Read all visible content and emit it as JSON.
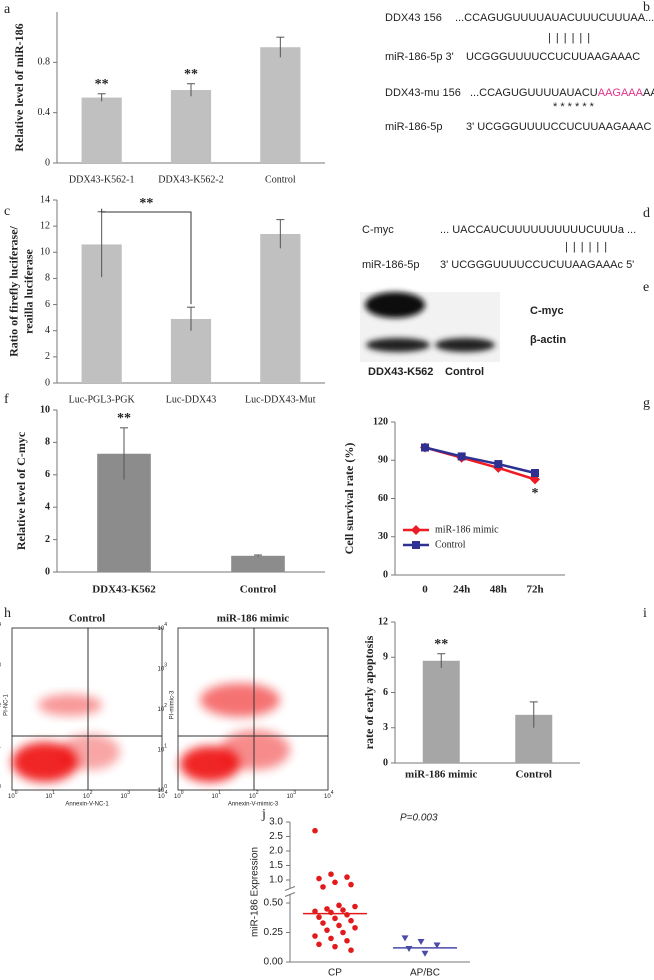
{
  "panel_labels": [
    "a",
    "b",
    "c",
    "d",
    "e",
    "f",
    "g",
    "h",
    "i",
    "j"
  ],
  "chart_data": [
    {
      "type": "bar",
      "ylabel": [
        "Relative level of miR-186"
      ],
      "categories": [
        "DDX43-K562-1",
        "DDX43-K562-2",
        "Control"
      ],
      "values": [
        0.52,
        0.58,
        0.92
      ],
      "errors": [
        0.03,
        0.05,
        0.08
      ],
      "significance": [
        "**",
        "**",
        null
      ],
      "color": "#c0c0c0",
      "ylim": [
        0,
        1.2
      ],
      "yticks": [
        0,
        0.4,
        0.8
      ]
    },
    {
      "type": "bar",
      "ylabel": [
        "Ratio of firefly luciferase/",
        "reailla luciferase"
      ],
      "categories": [
        "Luc-PGL3-PGK",
        "Luc-DDX43",
        "Luc-DDX43-Mut"
      ],
      "values": [
        10.6,
        4.9,
        11.4
      ],
      "errors": [
        2.5,
        0.9,
        1.1
      ],
      "comparison": {
        "label": "**",
        "categories": [
          "Luc-PGL3-PGK",
          "Luc-DDX43"
        ]
      },
      "color": "#c0c0c0",
      "ylim": [
        0,
        14
      ],
      "yticks": [
        0,
        2,
        4,
        6,
        8,
        10,
        12,
        14
      ]
    },
    {
      "type": "bar",
      "ylabel": [
        "Relative level of C-myc"
      ],
      "categories": [
        "DDX43-K562",
        "Control"
      ],
      "values": [
        7.3,
        1.0
      ],
      "errors": [
        1.6,
        0.05
      ],
      "significance": [
        "**",
        null
      ],
      "color": "#8c8c8c",
      "ylim": [
        0,
        10
      ],
      "yticks": [
        0,
        2,
        4,
        6,
        8,
        10
      ]
    },
    {
      "type": "line",
      "ylabel": [
        "Cell survival rate (%)"
      ],
      "categories": [
        "0",
        "24h",
        "48h",
        "72h"
      ],
      "legend": "lower left",
      "series": [
        {
          "name": "miR-186 mimic",
          "color": "#ed1c24",
          "marker": "diamond",
          "values": [
            100,
            92,
            84,
            75
          ],
          "errors": [
            1,
            1.5,
            2,
            2
          ],
          "significance": [
            null,
            null,
            null,
            "*"
          ]
        },
        {
          "name": "Control",
          "color": "#2e3192",
          "marker": "square",
          "values": [
            100,
            93,
            87,
            80
          ],
          "errors": [
            1,
            1,
            1.5,
            1.5
          ]
        }
      ],
      "ylim": [
        0,
        120
      ],
      "yticks": [
        0,
        30,
        60,
        90,
        120
      ]
    },
    {
      "type": "bar",
      "ylabel": [
        "rate of early apoptosis"
      ],
      "categories": [
        "miR-186 mimic",
        "Control"
      ],
      "values": [
        8.7,
        4.1
      ],
      "errors": [
        0.6,
        1.1
      ],
      "significance": [
        "**",
        null
      ],
      "color": "#a6a6a6",
      "ylim": [
        0,
        12
      ],
      "yticks": [
        0,
        3,
        6,
        9,
        12
      ]
    },
    {
      "type": "strip",
      "ylabel": [
        "miR-186 Expression"
      ],
      "annotation": "P=0.003",
      "ylim": [
        0,
        3
      ],
      "axis_break": [
        0.5,
        1
      ],
      "yticks": [
        {
          "value": 0,
          "label": "0.00"
        },
        {
          "value": 0.25,
          "label": "0.25"
        },
        {
          "value": 0.5,
          "label": "0.50"
        },
        {
          "value": 1,
          "label": "1.0"
        },
        {
          "value": 1.5,
          "label": "1.5"
        },
        {
          "value": 2,
          "label": "2.0"
        },
        {
          "value": 2.5,
          "label": "2.5"
        },
        {
          "value": 3,
          "label": "3.0"
        }
      ],
      "series": [
        {
          "name": "CP",
          "color": "#e31a1c",
          "marker": "circle",
          "center_line": 0.41,
          "values": [
            2.7,
            1.2,
            1.1,
            1.05,
            0.95,
            0.9,
            0.85,
            0.48,
            0.47,
            0.45,
            0.44,
            0.43,
            0.42,
            0.4,
            0.38,
            0.37,
            0.35,
            0.33,
            0.31,
            0.29,
            0.27,
            0.25,
            0.22,
            0.2,
            0.18,
            0.15,
            0.13,
            0.1
          ]
        },
        {
          "name": "AP/BC",
          "color": "#4a4aa8",
          "marker": "triangle-down",
          "center_line": 0.12,
          "values": [
            0.2,
            0.17,
            0.14,
            0.11,
            0.07
          ]
        }
      ]
    }
  ],
  "alignment_b": {
    "wild_name": "DDX43 156",
    "wild_seq": "...CCAGUGUUUUAUACUUUCUUUAA...",
    "pairs": "||||||",
    "mir_name": "miR-186-5p 3'",
    "mir_seq": "UCGGGUUUUCCUCUUAAGAAAC",
    "mut_name": "DDX43-mu 156",
    "mut_before": "...CCAGUGUUUUAUACU",
    "mut_site": "AAGAAA",
    "mut_after": "AA...",
    "stars": "* * * * * *",
    "mir2_name": "miR-186-5p",
    "mir2_seq": "3'  UCGGGUUUUCCUCUUAAGAAAC"
  },
  "alignment_d": {
    "target_name": "C-myc",
    "target_seq": "... UACCAUCUUUUUUUUUUCUUUa ...",
    "pairs": "||||||",
    "mir_name": "miR-186-5p",
    "mir_seq": "3' UCGGGUUUUCCUCUUAAGAAAc 5'"
  },
  "blot_e": {
    "bands": [
      "C-myc",
      "β-actin"
    ],
    "lanes": [
      "DDX43-K562",
      "Control"
    ]
  },
  "flow_h": {
    "tick_base": "10",
    "tick_exponents": [
      0,
      1,
      2,
      3,
      4
    ],
    "plots": [
      {
        "title": "Control",
        "xlabel": "Annexin-V-NC-1",
        "ylabel": "PI-NC-1"
      },
      {
        "title": "miR-186 mimic",
        "xlabel": "Annexin-V-mimic-3",
        "ylabel": "PI-mimic-3"
      }
    ]
  }
}
